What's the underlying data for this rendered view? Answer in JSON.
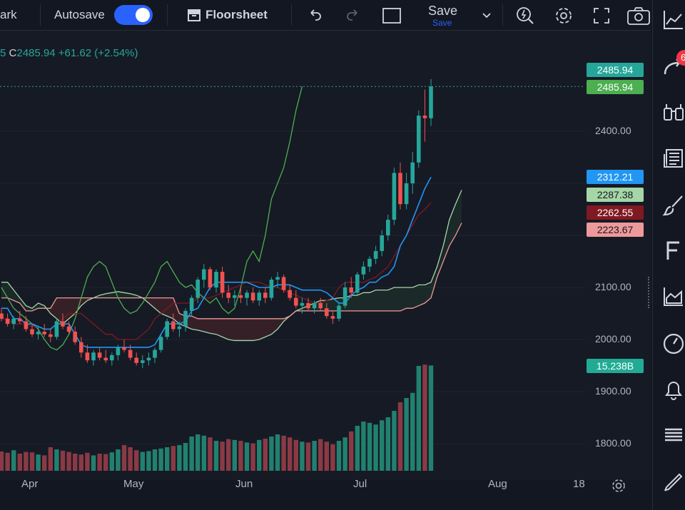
{
  "topbar": {
    "symbol_partial": "ark",
    "autosave_label": "Autosave",
    "floorsheet_label": "Floorsheet",
    "save_label": "Save",
    "save_sub": "Save"
  },
  "legend": {
    "prefix": "5",
    "close_label": "C",
    "close_value": "2485.94",
    "change": "+61.62",
    "change_pct": "(+2.54%)"
  },
  "price_tags": [
    {
      "text": "2485.94",
      "bg": "#26a69a",
      "fg": "#ffffff"
    },
    {
      "text": "2485.94",
      "bg": "#4caf50",
      "fg": "#ffffff"
    },
    {
      "text": "2312.21",
      "bg": "#2196f3",
      "fg": "#ffffff"
    },
    {
      "text": "2287.38",
      "bg": "#a5d6a7",
      "fg": "#131722"
    },
    {
      "text": "2262.55",
      "bg": "#801922",
      "fg": "#ffffff"
    },
    {
      "text": "2223.67",
      "bg": "#ef9a9a",
      "fg": "#131722"
    },
    {
      "text": "15.238B",
      "bg": "#22ab94",
      "fg": "#ffffff"
    }
  ],
  "y_axis": {
    "labels": [
      "2400.00",
      "2100.00",
      "2000.00",
      "1900.00",
      "1800.00"
    ]
  },
  "x_axis": {
    "labels": [
      "Apr",
      "May",
      "Jun",
      "Jul",
      "Aug",
      "18"
    ]
  },
  "right_toolbar": {
    "badge": "6"
  },
  "colors": {
    "up": "#26a69a",
    "down": "#ef5350",
    "vol_up": "#22806f",
    "vol_down": "#8a3a45",
    "kijun": "#2196f3",
    "chikou": "#4caf50",
    "tenkan": "#801922",
    "span_a": "#a5d6a7",
    "span_b": "#ef9a9a"
  },
  "chart_data": {
    "type": "candlestick",
    "x_range": [
      "Mar",
      "Aug 18"
    ],
    "y_range": [
      1770,
      2520
    ],
    "last_price": 2485.94,
    "volume_last": "15.238B",
    "candles": [
      {
        "o": 2050,
        "h": 2060,
        "l": 2035,
        "c": 2040
      },
      {
        "o": 2040,
        "h": 2050,
        "l": 2025,
        "c": 2030
      },
      {
        "o": 2030,
        "h": 2045,
        "l": 2020,
        "c": 2040
      },
      {
        "o": 2040,
        "h": 2055,
        "l": 2030,
        "c": 2035
      },
      {
        "o": 2035,
        "h": 2045,
        "l": 2015,
        "c": 2020
      },
      {
        "o": 2020,
        "h": 2030,
        "l": 2005,
        "c": 2010
      },
      {
        "o": 2010,
        "h": 2025,
        "l": 2000,
        "c": 2015
      },
      {
        "o": 2015,
        "h": 2030,
        "l": 2005,
        "c": 2010
      },
      {
        "o": 2010,
        "h": 2020,
        "l": 1995,
        "c": 2005
      },
      {
        "o": 2005,
        "h": 2040,
        "l": 2000,
        "c": 2035
      },
      {
        "o": 2035,
        "h": 2050,
        "l": 2020,
        "c": 2025
      },
      {
        "o": 2025,
        "h": 2035,
        "l": 2010,
        "c": 2015
      },
      {
        "o": 2015,
        "h": 2025,
        "l": 1990,
        "c": 1995
      },
      {
        "o": 1995,
        "h": 2005,
        "l": 1965,
        "c": 1975
      },
      {
        "o": 1975,
        "h": 1990,
        "l": 1955,
        "c": 1960
      },
      {
        "o": 1960,
        "h": 1980,
        "l": 1950,
        "c": 1975
      },
      {
        "o": 1975,
        "h": 1985,
        "l": 1960,
        "c": 1965
      },
      {
        "o": 1965,
        "h": 1980,
        "l": 1955,
        "c": 1960
      },
      {
        "o": 1960,
        "h": 1975,
        "l": 1950,
        "c": 1970
      },
      {
        "o": 1970,
        "h": 1990,
        "l": 1960,
        "c": 1985
      },
      {
        "o": 1985,
        "h": 2000,
        "l": 1975,
        "c": 1980
      },
      {
        "o": 1980,
        "h": 1990,
        "l": 1960,
        "c": 1965
      },
      {
        "o": 1965,
        "h": 1975,
        "l": 1950,
        "c": 1955
      },
      {
        "o": 1955,
        "h": 1970,
        "l": 1945,
        "c": 1960
      },
      {
        "o": 1960,
        "h": 1975,
        "l": 1950,
        "c": 1965
      },
      {
        "o": 1965,
        "h": 1985,
        "l": 1955,
        "c": 1980
      },
      {
        "o": 1980,
        "h": 2010,
        "l": 1975,
        "c": 2005
      },
      {
        "o": 2005,
        "h": 2040,
        "l": 2000,
        "c": 2035
      },
      {
        "o": 2035,
        "h": 2050,
        "l": 2015,
        "c": 2020
      },
      {
        "o": 2020,
        "h": 2035,
        "l": 2005,
        "c": 2025
      },
      {
        "o": 2025,
        "h": 2060,
        "l": 2015,
        "c": 2055
      },
      {
        "o": 2055,
        "h": 2085,
        "l": 2045,
        "c": 2080
      },
      {
        "o": 2080,
        "h": 2120,
        "l": 2070,
        "c": 2115
      },
      {
        "o": 2115,
        "h": 2145,
        "l": 2100,
        "c": 2135
      },
      {
        "o": 2135,
        "h": 2140,
        "l": 2095,
        "c": 2100
      },
      {
        "o": 2100,
        "h": 2135,
        "l": 2090,
        "c": 2130
      },
      {
        "o": 2130,
        "h": 2140,
        "l": 2080,
        "c": 2090
      },
      {
        "o": 2090,
        "h": 2105,
        "l": 2070,
        "c": 2080
      },
      {
        "o": 2080,
        "h": 2095,
        "l": 2065,
        "c": 2085
      },
      {
        "o": 2085,
        "h": 2100,
        "l": 2070,
        "c": 2080
      },
      {
        "o": 2080,
        "h": 2095,
        "l": 2065,
        "c": 2090
      },
      {
        "o": 2090,
        "h": 2100,
        "l": 2070,
        "c": 2075
      },
      {
        "o": 2075,
        "h": 2095,
        "l": 2065,
        "c": 2090
      },
      {
        "o": 2090,
        "h": 2100,
        "l": 2070,
        "c": 2080
      },
      {
        "o": 2080,
        "h": 2120,
        "l": 2075,
        "c": 2115
      },
      {
        "o": 2115,
        "h": 2130,
        "l": 2100,
        "c": 2120
      },
      {
        "o": 2120,
        "h": 2125,
        "l": 2090,
        "c": 2095
      },
      {
        "o": 2095,
        "h": 2105,
        "l": 2075,
        "c": 2080
      },
      {
        "o": 2080,
        "h": 2095,
        "l": 2060,
        "c": 2065
      },
      {
        "o": 2065,
        "h": 2080,
        "l": 2050,
        "c": 2070
      },
      {
        "o": 2070,
        "h": 2080,
        "l": 2055,
        "c": 2060
      },
      {
        "o": 2060,
        "h": 2075,
        "l": 2050,
        "c": 2070
      },
      {
        "o": 2070,
        "h": 2080,
        "l": 2055,
        "c": 2060
      },
      {
        "o": 2060,
        "h": 2070,
        "l": 2040,
        "c": 2045
      },
      {
        "o": 2045,
        "h": 2055,
        "l": 2030,
        "c": 2040
      },
      {
        "o": 2040,
        "h": 2070,
        "l": 2035,
        "c": 2065
      },
      {
        "o": 2065,
        "h": 2110,
        "l": 2060,
        "c": 2100
      },
      {
        "o": 2100,
        "h": 2120,
        "l": 2080,
        "c": 2090
      },
      {
        "o": 2090,
        "h": 2130,
        "l": 2085,
        "c": 2125
      },
      {
        "o": 2125,
        "h": 2150,
        "l": 2115,
        "c": 2140
      },
      {
        "o": 2140,
        "h": 2160,
        "l": 2130,
        "c": 2155
      },
      {
        "o": 2155,
        "h": 2180,
        "l": 2145,
        "c": 2170
      },
      {
        "o": 2170,
        "h": 2210,
        "l": 2160,
        "c": 2200
      },
      {
        "o": 2200,
        "h": 2240,
        "l": 2190,
        "c": 2230
      },
      {
        "o": 2230,
        "h": 2330,
        "l": 2220,
        "c": 2320
      },
      {
        "o": 2320,
        "h": 2340,
        "l": 2250,
        "c": 2260
      },
      {
        "o": 2260,
        "h": 2320,
        "l": 2250,
        "c": 2300
      },
      {
        "o": 2300,
        "h": 2360,
        "l": 2280,
        "c": 2340
      },
      {
        "o": 2340,
        "h": 2440,
        "l": 2330,
        "c": 2430
      },
      {
        "o": 2430,
        "h": 2480,
        "l": 2380,
        "c": 2425
      },
      {
        "o": 2425,
        "h": 2500,
        "l": 2410,
        "c": 2486
      }
    ],
    "volume": [
      45,
      42,
      48,
      40,
      44,
      43,
      38,
      36,
      55,
      50,
      47,
      44,
      40,
      38,
      42,
      36,
      40,
      39,
      43,
      50,
      60,
      55,
      48,
      44,
      46,
      50,
      52,
      55,
      58,
      60,
      65,
      80,
      85,
      82,
      78,
      70,
      68,
      74,
      72,
      70,
      66,
      64,
      72,
      75,
      80,
      85,
      82,
      78,
      72,
      68,
      66,
      70,
      74,
      68,
      62,
      70,
      78,
      92,
      105,
      115,
      112,
      108,
      118,
      125,
      140,
      160,
      170,
      182,
      245,
      248,
      246
    ],
    "kijun": [
      2060,
      2060,
      2040,
      2040,
      2030,
      2030,
      2025,
      2020,
      2020,
      2030,
      2030,
      2030,
      2010,
      1990,
      1985,
      1985,
      1985,
      1985,
      1985,
      1985,
      1985,
      1985,
      1985,
      1985,
      1985,
      1990,
      2010,
      2030,
      2030,
      2030,
      2035,
      2055,
      2060,
      2080,
      2100,
      2110,
      2110,
      2110,
      2110,
      2110,
      2110,
      2105,
      2100,
      2100,
      2100,
      2105,
      2105,
      2105,
      2100,
      2095,
      2095,
      2095,
      2095,
      2090,
      2080,
      2070,
      2070,
      2085,
      2095,
      2100,
      2110,
      2110,
      2120,
      2125,
      2140,
      2180,
      2200,
      2230,
      2260,
      2290,
      2312
    ],
    "tenkan": [
      2040,
      2040,
      2030,
      2030,
      2030,
      2025,
      2025,
      2020,
      2020,
      2030,
      2040,
      2050,
      2050,
      2050,
      2040,
      2030,
      2020,
      2010,
      2010,
      2000,
      2000,
      2000,
      2000,
      2010,
      2020,
      2040,
      2050,
      2060,
      2070,
      2070,
      2070,
      2070,
      2080,
      2080,
      2080,
      2085,
      2090,
      2095,
      2100,
      2105,
      2110,
      2110,
      2110,
      2105,
      2100,
      2100,
      2095,
      2090,
      2085,
      2080,
      2075,
      2070,
      2070,
      2075,
      2080,
      2100,
      2110,
      2110,
      2110,
      2110,
      2115,
      2120,
      2130,
      2140,
      2160,
      2180,
      2200,
      2220,
      2240,
      2250,
      2263
    ],
    "span_a": [
      2110,
      2110,
      2095,
      2080,
      2065,
      2060,
      2070,
      2065,
      2050,
      2040,
      2030,
      2040,
      2050,
      2065,
      2075,
      2080,
      2085,
      2088,
      2090,
      2092,
      2090,
      2088,
      2085,
      2080,
      2070,
      2060,
      2050,
      2045,
      2040,
      2030,
      2025,
      2020,
      2018,
      2015,
      2012,
      2010,
      2005,
      2000,
      1998,
      1998,
      1998,
      1998,
      2000,
      2005,
      2010,
      2020,
      2035,
      2045,
      2055,
      2060,
      2065,
      2070,
      2075,
      2075,
      2078,
      2080,
      2080,
      2085,
      2085,
      2090,
      2090,
      2095,
      2095,
      2095,
      2100,
      2100,
      2100,
      2100,
      2105,
      2105,
      2110,
      2140,
      2180,
      2230,
      2260,
      2287
    ],
    "span_b": [
      2080,
      2080,
      2075,
      2070,
      2055,
      2055,
      2060,
      2060,
      2060,
      2080,
      2080,
      2080,
      2080,
      2080,
      2080,
      2080,
      2080,
      2080,
      2080,
      2080,
      2080,
      2080,
      2080,
      2080,
      2080,
      2080,
      2080,
      2080,
      2080,
      2050,
      2045,
      2045,
      2040,
      2040,
      2040,
      2040,
      2040,
      2040,
      2040,
      2040,
      2040,
      2040,
      2040,
      2040,
      2040,
      2040,
      2040,
      2045,
      2055,
      2055,
      2055,
      2055,
      2055,
      2055,
      2055,
      2055,
      2055,
      2055,
      2055,
      2055,
      2055,
      2055,
      2055,
      2055,
      2055,
      2055,
      2060,
      2060,
      2065,
      2070,
      2080,
      2120,
      2150,
      2180,
      2200,
      2224
    ],
    "chikou": [
      2100,
      2080,
      2060,
      2050,
      2040,
      2030,
      2020,
      2000,
      1985,
      1980,
      1990,
      2010,
      2040,
      2080,
      2120,
      2140,
      2150,
      2140,
      2110,
      2080,
      2060,
      2050,
      2055,
      2070,
      2090,
      2110,
      2140,
      2150,
      2130,
      2110,
      2100,
      2105,
      2090,
      2080,
      2070,
      2080,
      2060,
      2050,
      2060,
      2100,
      2150,
      2170,
      2150,
      2200,
      2270,
      2300,
      2330,
      2380,
      2440,
      2486
    ]
  }
}
